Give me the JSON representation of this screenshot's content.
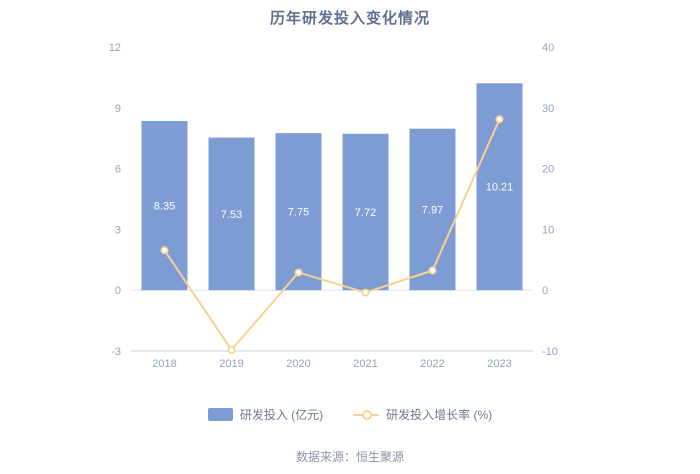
{
  "title": "历年研发投入变化情况",
  "source": "数据来源：恒生聚源",
  "legend": {
    "bar_label": "研发投入 (亿元)",
    "line_label": "研发投入增长率 (%)"
  },
  "colors": {
    "bar": "#7d9cd4",
    "bar_label_text": "#ffffff",
    "line": "#fad193",
    "axis_text": "#94a3bd",
    "zero_line": "#e2e6ed",
    "axis_line": "#ccd2dd",
    "title_text": "#61708f"
  },
  "chart_data": {
    "type": "bar",
    "subtype": "bar-line-combo",
    "title": "历年研发投入变化情况",
    "categories": [
      "2018",
      "2019",
      "2020",
      "2021",
      "2022",
      "2023"
    ],
    "series": [
      {
        "name": "研发投入 (亿元)",
        "type": "bar",
        "axis": "left",
        "values": [
          8.35,
          7.53,
          7.75,
          7.72,
          7.97,
          10.21
        ],
        "data_labels_visible": true
      },
      {
        "name": "研发投入增长率 (%)",
        "type": "line",
        "axis": "right",
        "values": [
          6.57,
          -9.82,
          2.92,
          -0.39,
          3.24,
          28.11
        ],
        "data_labels_visible": false
      }
    ],
    "left_axis": {
      "min": -3,
      "max": 12,
      "ticks": [
        -3,
        0,
        3,
        6,
        9,
        12
      ]
    },
    "right_axis": {
      "min": -10,
      "max": 40,
      "ticks": [
        -10,
        0,
        10,
        20,
        30,
        40
      ]
    },
    "grid": false,
    "legend_position": "bottom"
  }
}
